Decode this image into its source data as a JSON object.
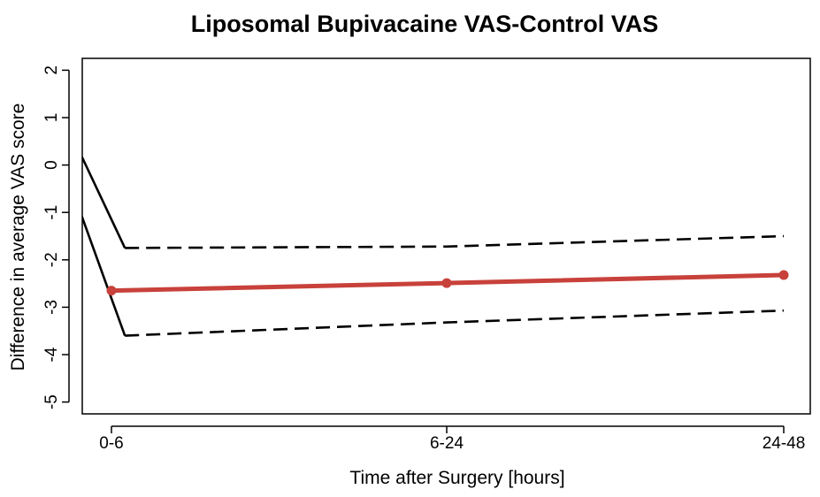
{
  "chart_data": {
    "type": "line",
    "title": "Liposomal Bupivacaine VAS-Control VAS",
    "xlabel": "Time after Surgery [hours]",
    "ylabel": "Difference in average VAS score",
    "categories": [
      "0-6",
      "6-24",
      "24-48"
    ],
    "y_ticks": [
      "2",
      "1",
      "0",
      "-1",
      "-2",
      "-3",
      "-4",
      "-5"
    ],
    "ylim": [
      -5.25,
      2.25
    ],
    "grid": false,
    "legend": "none",
    "series": [
      {
        "role": "estimate",
        "style": "solid-thick-with-markers",
        "color": "#c8413b",
        "x": [
          0,
          1,
          2
        ],
        "y": [
          -2.65,
          -2.49,
          -2.32
        ]
      },
      {
        "role": "upper-bound",
        "style": "dashed",
        "color": "#000000",
        "x": [
          0.04,
          1,
          2
        ],
        "y": [
          -1.75,
          -1.72,
          -1.5
        ]
      },
      {
        "role": "lower-bound",
        "style": "dashed",
        "color": "#000000",
        "x": [
          0.04,
          1,
          2
        ],
        "y": [
          -3.6,
          -3.32,
          -3.07
        ]
      },
      {
        "role": "upper-bound-lead-in",
        "style": "solid",
        "color": "#000000",
        "x": [
          -0.09,
          0.04
        ],
        "y": [
          0.2,
          -1.75
        ]
      },
      {
        "role": "lower-bound-lead-in",
        "style": "solid",
        "color": "#000000",
        "x": [
          -0.09,
          0.04
        ],
        "y": [
          -1.05,
          -3.6
        ]
      }
    ]
  }
}
